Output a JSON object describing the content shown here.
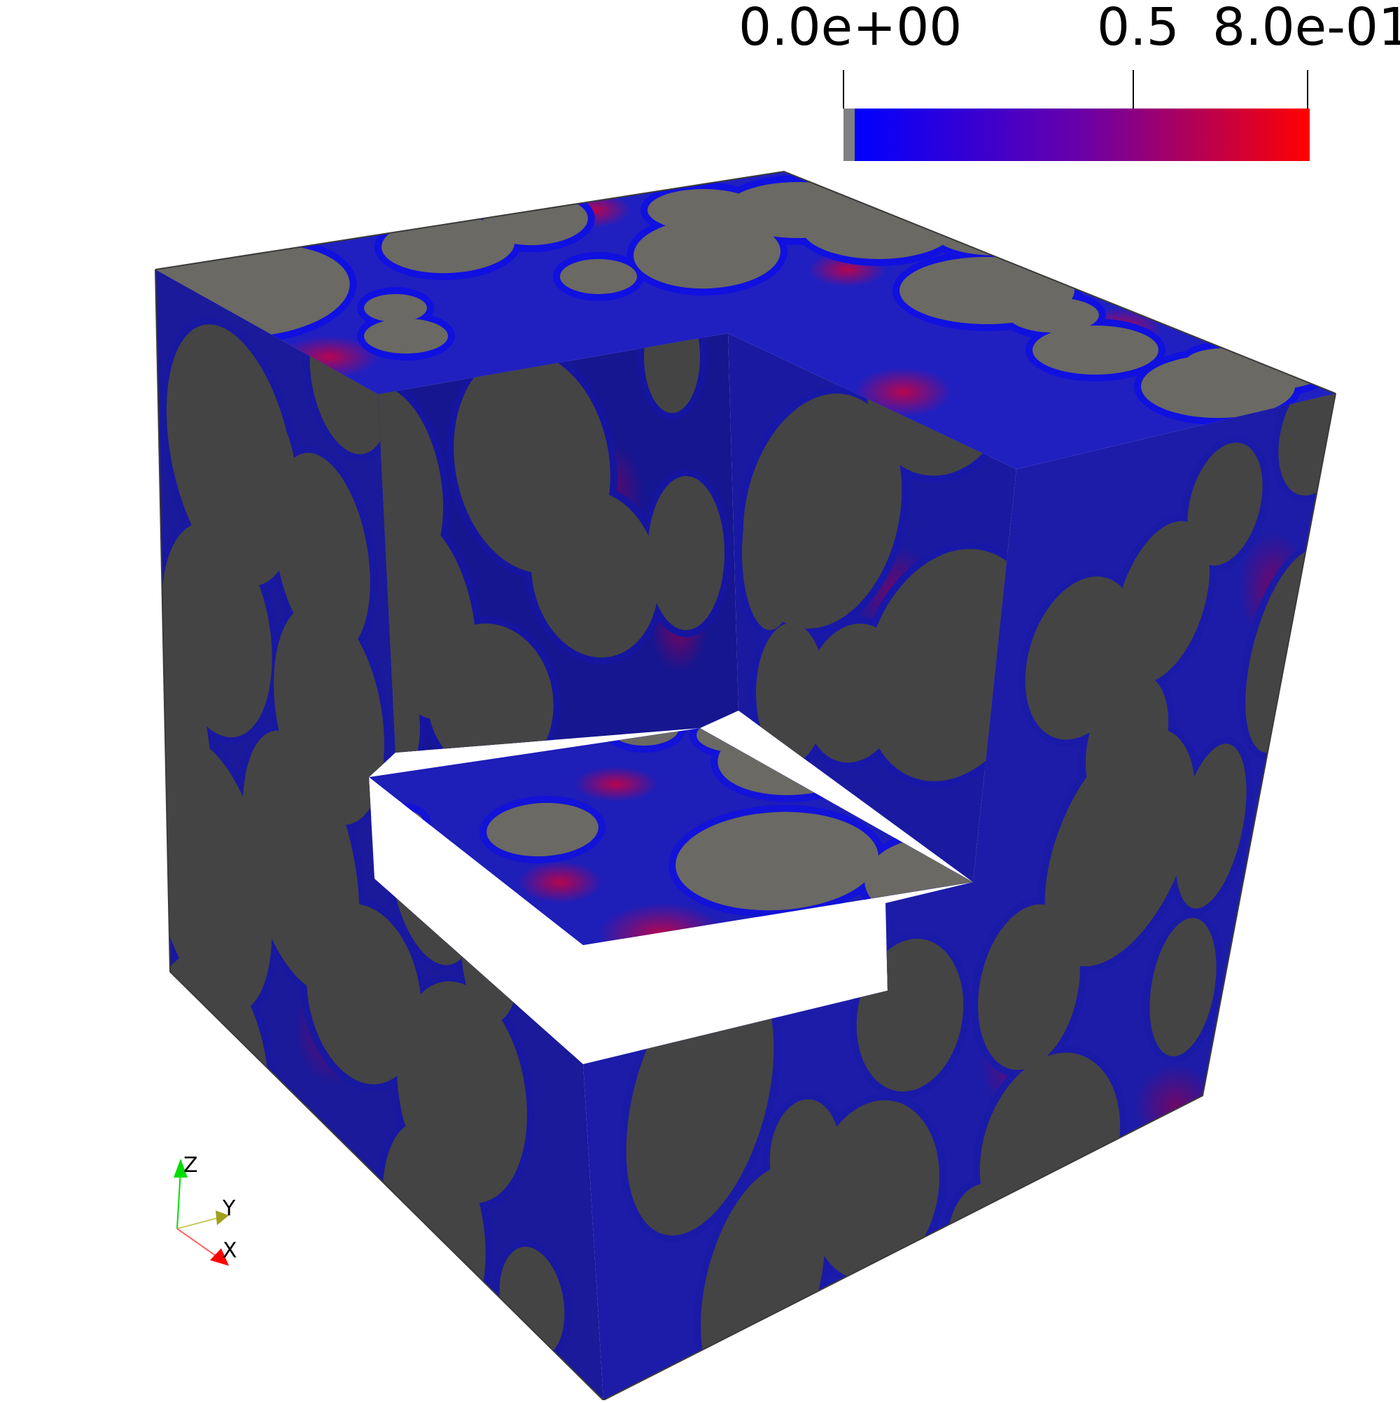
{
  "colorbar": {
    "labels": [
      "0.0e+00",
      "0.5",
      "8.0e-01"
    ],
    "range": [
      0.0,
      0.8
    ],
    "tick_values": [
      0.0,
      0.5,
      0.8
    ],
    "color_low": "#0000ff",
    "color_high": "#ff0000",
    "below_range_color": "#808080"
  },
  "orientation_axes": {
    "x_label": "X",
    "y_label": "Y",
    "z_label": "Z",
    "x_color": "#ff0000",
    "y_color": "#a0a020",
    "z_color": "#00dd00"
  },
  "render": {
    "background": "#ffffff",
    "inclusion_color_lit": "#6a6964",
    "inclusion_color_shaded": "#444444",
    "matrix_base_color": "#1a1aa8",
    "matrix_hot_color": "#b00040"
  }
}
